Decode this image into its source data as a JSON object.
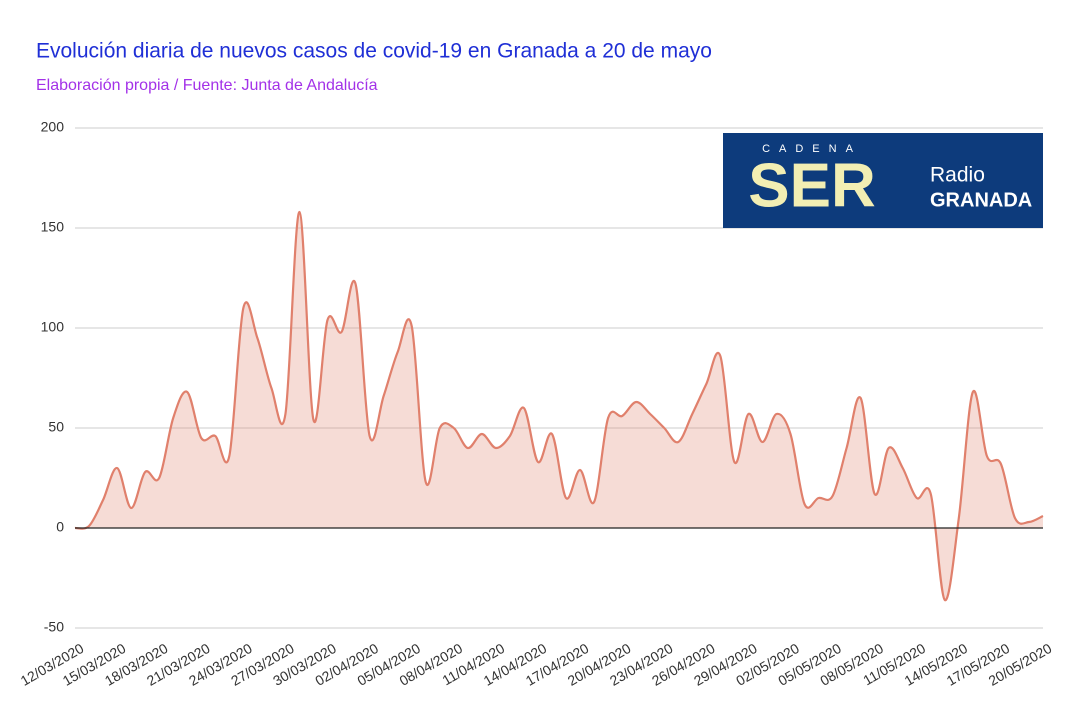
{
  "chart_data": {
    "type": "area",
    "title": "Evolución diaria de nuevos casos de covid-19 en Granada a 20 de mayo",
    "subtitle": "Elaboración propia / Fuente: Junta de Andalucía",
    "logo": {
      "top": "CADENA",
      "main": "SER",
      "line1": "Radio",
      "line2": "GRANADA"
    },
    "categories": [
      "12/03/2020",
      null,
      null,
      "15/03/2020",
      null,
      null,
      "18/03/2020",
      null,
      null,
      "21/03/2020",
      null,
      null,
      "24/03/2020",
      null,
      null,
      "27/03/2020",
      null,
      null,
      "30/03/2020",
      null,
      null,
      "02/04/2020",
      null,
      null,
      "05/04/2020",
      null,
      null,
      "08/04/2020",
      null,
      null,
      "11/04/2020",
      null,
      null,
      "14/04/2020",
      null,
      null,
      "17/04/2020",
      null,
      null,
      "20/04/2020",
      null,
      null,
      "23/04/2020",
      null,
      null,
      "26/04/2020",
      null,
      null,
      "29/04/2020",
      null,
      null,
      "02/05/2020",
      null,
      null,
      "05/05/2020",
      null,
      null,
      "08/05/2020",
      null,
      null,
      "11/05/2020",
      null,
      null,
      "14/05/2020",
      null,
      null,
      "17/05/2020",
      null,
      null,
      "20/05/2020"
    ],
    "series": [
      {
        "color": "#e0806c",
        "values": [
          0,
          1,
          14,
          30,
          10,
          28,
          25,
          55,
          68,
          45,
          46,
          36,
          110,
          95,
          70,
          57,
          158,
          54,
          104,
          98,
          122,
          46,
          66,
          88,
          101,
          23,
          50,
          50,
          40,
          47,
          40,
          46,
          60,
          33,
          47,
          15,
          29,
          13,
          55,
          56,
          63,
          57,
          50,
          43,
          57,
          72,
          86,
          33,
          57,
          43,
          57,
          47,
          12,
          15,
          16,
          40,
          65,
          17,
          40,
          30,
          15,
          17,
          -36,
          5,
          68,
          36,
          32,
          5,
          3,
          6
        ]
      }
    ],
    "ylim": [
      -50,
      200
    ],
    "yticks": [
      -50,
      0,
      50,
      100,
      150,
      200
    ],
    "grid": true
  }
}
